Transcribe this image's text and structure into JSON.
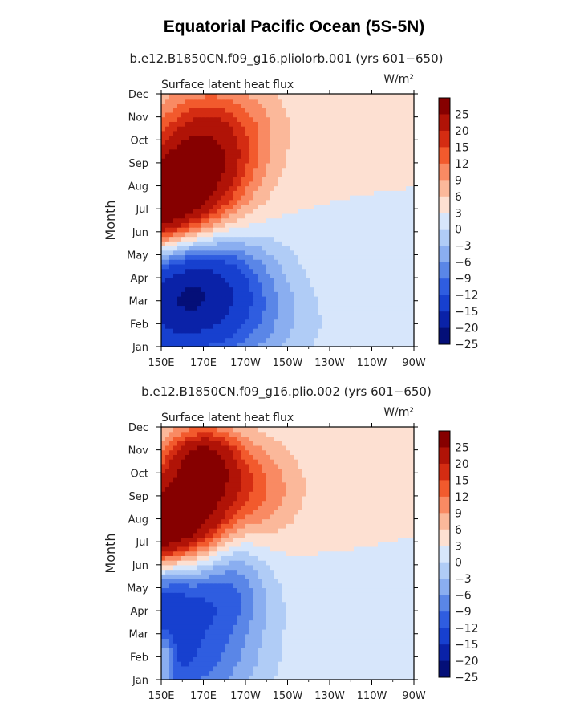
{
  "title": "Equatorial Pacific Ocean (5S-5N)",
  "colors": {
    "warm": [
      "#fde0d2",
      "#fbb89a",
      "#f98a63",
      "#f25a2d",
      "#d42c12",
      "#b01307",
      "#860000"
    ],
    "cool": [
      "#d7e6fb",
      "#b0ccf6",
      "#8aaef0",
      "#5a86e7",
      "#2f5de0",
      "#1740cf",
      "#0a22a8",
      "#040f78"
    ]
  },
  "chart_data": [
    {
      "type": "heatmap",
      "case": "b.e12.B1850CN.f09_g16.pliolorb.001 (yrs 601−650)",
      "variable": "Surface latent heat flux",
      "units": "W/m²",
      "ylabel": "Month",
      "x_ticks": [
        "150E",
        "170E",
        "170W",
        "150W",
        "130W",
        "110W",
        "90W"
      ],
      "x_range": [
        "150E",
        "90W"
      ],
      "y_ticks": [
        "Jan",
        "Feb",
        "Mar",
        "Apr",
        "May",
        "Jun",
        "Jul",
        "Aug",
        "Sep",
        "Oct",
        "Nov",
        "Dec"
      ],
      "colorbar_levels": [
        "25",
        "20",
        "15",
        "12",
        "9",
        "6",
        "3",
        "0",
        "−3",
        "−6",
        "−9",
        "−12",
        "−15",
        "−20",
        "−25"
      ],
      "features": [
        {
          "lon": 145,
          "month": 7.2,
          "sx": 22,
          "sy": 1.5,
          "value": 28
        },
        {
          "lon": 170,
          "month": 9.0,
          "sx": 18,
          "sy": 1.5,
          "value": 14
        },
        {
          "lon": 175,
          "month": 10.8,
          "sx": 22,
          "sy": 1.5,
          "value": 9
        },
        {
          "lon": 115,
          "month": 5.5,
          "sx": 15,
          "sy": 1.1,
          "value": 14
        },
        {
          "lon": 165,
          "month": 4.1,
          "sx": 25,
          "sy": 1.5,
          "value": -20
        },
        {
          "lon": 160,
          "month": 1.8,
          "sx": 35,
          "sy": 1.5,
          "value": -15
        },
        {
          "lon": 115,
          "month": 2.5,
          "sx": 15,
          "sy": 1.2,
          "value": 7
        },
        {
          "lon": 125,
          "month": 9.7,
          "sx": 15,
          "sy": 1.0,
          "value": -6
        },
        {
          "lon": 100,
          "month": 10.5,
          "sx": 12,
          "sy": 1.0,
          "value": 5
        }
      ]
    },
    {
      "type": "heatmap",
      "case": "b.e12.B1850CN.f09_g16.plio.002 (yrs 601−650)",
      "variable": "Surface latent heat flux",
      "units": "W/m²",
      "ylabel": "Month",
      "x_ticks": [
        "150E",
        "170E",
        "170W",
        "150W",
        "130W",
        "110W",
        "90W"
      ],
      "x_range": [
        "150E",
        "90W"
      ],
      "y_ticks": [
        "Jan",
        "Feb",
        "Mar",
        "Apr",
        "May",
        "Jun",
        "Jul",
        "Aug",
        "Sep",
        "Oct",
        "Nov",
        "Dec"
      ],
      "colorbar_levels": [
        "25",
        "20",
        "15",
        "12",
        "9",
        "6",
        "3",
        "0",
        "−3",
        "−6",
        "−9",
        "−12",
        "−15",
        "−20",
        "−25"
      ],
      "features": [
        {
          "lon": 130,
          "month": 7.3,
          "sx": 22,
          "sy": 1.1,
          "value": 27
        },
        {
          "lon": 160,
          "month": 8.2,
          "sx": 22,
          "sy": 1.4,
          "value": 15
        },
        {
          "lon": 180,
          "month": 9.5,
          "sx": 22,
          "sy": 1.5,
          "value": 12
        },
        {
          "lon": 170,
          "month": 10.7,
          "sx": 12,
          "sy": 1.0,
          "value": 14
        },
        {
          "lon": 110,
          "month": 8.5,
          "sx": 10,
          "sy": 1.5,
          "value": 10
        },
        {
          "lon": 150,
          "month": 4.5,
          "sx": 30,
          "sy": 1.5,
          "value": -16
        },
        {
          "lon": 150,
          "month": 1.5,
          "sx": 30,
          "sy": 1.5,
          "value": -14
        },
        {
          "lon": 135,
          "month": 2.8,
          "sx": 12,
          "sy": 1.0,
          "value": 5
        },
        {
          "lon": 123,
          "month": 9.8,
          "sx": 10,
          "sy": 1.0,
          "value": -9
        },
        {
          "lon": 152,
          "month": 1.8,
          "sx": 3,
          "sy": 0.8,
          "value": 9
        },
        {
          "lon": 185,
          "month": 6.5,
          "sx": 10,
          "sy": 2.5,
          "value": -6
        }
      ]
    }
  ]
}
